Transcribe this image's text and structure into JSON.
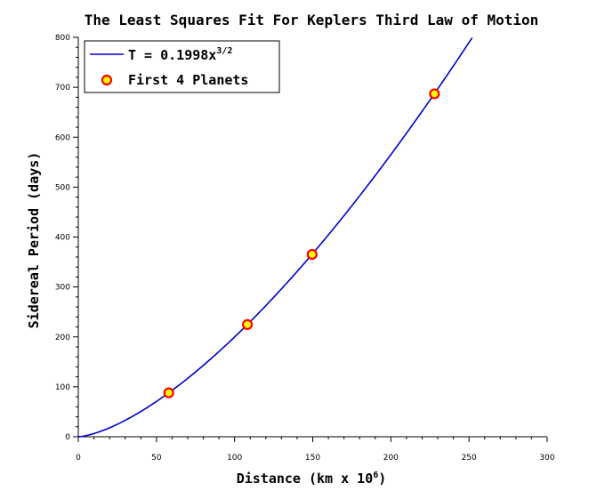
{
  "chart_data": {
    "type": "scatter",
    "title": "The Least Squares Fit For Keplers Third Law of Motion",
    "xlabel": "Distance (km x 10",
    "xlabel_superscript": "6",
    "xlabel_suffix": ")",
    "ylabel": "Sidereal Period (days)",
    "xlim": [
      0,
      300
    ],
    "ylim": [
      0,
      800
    ],
    "xticks": [
      0,
      50,
      100,
      150,
      200,
      250,
      300
    ],
    "yticks": [
      0,
      100,
      200,
      300,
      400,
      500,
      600,
      700,
      800
    ],
    "grid": false,
    "legend_position": "top-left",
    "series": [
      {
        "name": "T = 0.1998x",
        "name_superscript": "3/2",
        "kind": "line",
        "coefficient": 0.1998,
        "exponent": 1.5,
        "x_range": [
          0,
          252
        ],
        "color": "#0000cc"
      },
      {
        "name": "First 4 Planets",
        "kind": "markers",
        "x": [
          57.9,
          108.2,
          149.6,
          227.9
        ],
        "y": [
          88.0,
          224.7,
          365.3,
          687.0
        ],
        "marker_fill": "#ffff00",
        "marker_edge": "#ff0000"
      }
    ]
  }
}
